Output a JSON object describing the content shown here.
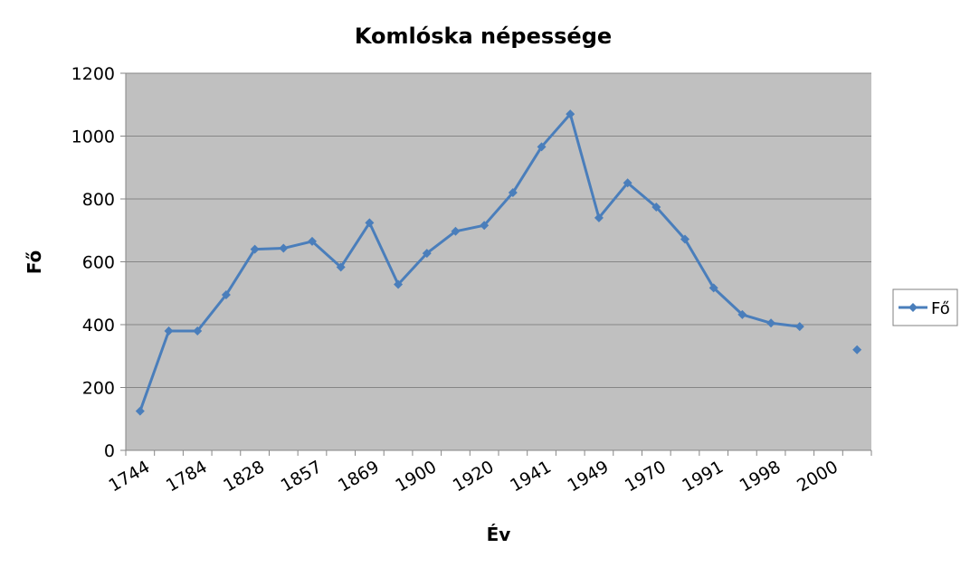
{
  "chart_data": {
    "type": "line",
    "title": "Komlóska népessége",
    "xlabel": "Év",
    "ylabel": "Fő",
    "ylim": [
      0,
      1200
    ],
    "yticks": [
      "0",
      "200",
      "400",
      "600",
      "800",
      "1000",
      "1200"
    ],
    "categories": [
      "1744",
      "",
      "1784",
      "",
      "1828",
      "",
      "1857",
      "",
      "1869",
      "",
      "1900",
      "",
      "1920",
      "",
      "1941",
      "",
      "1949",
      "",
      "1970",
      "",
      "1991",
      "",
      "1998",
      "",
      "2000",
      ""
    ],
    "series": [
      {
        "name": "Fő",
        "color": "#4a7ebb",
        "values": [
          125,
          380,
          380,
          495,
          640,
          643,
          665,
          583,
          724,
          528,
          627,
          697,
          716,
          820,
          966,
          1070,
          740,
          851,
          774,
          672,
          517,
          432,
          405,
          394,
          null,
          320
        ]
      }
    ],
    "legend": "right",
    "grid": true,
    "plot_background": "#c0c0c0"
  }
}
